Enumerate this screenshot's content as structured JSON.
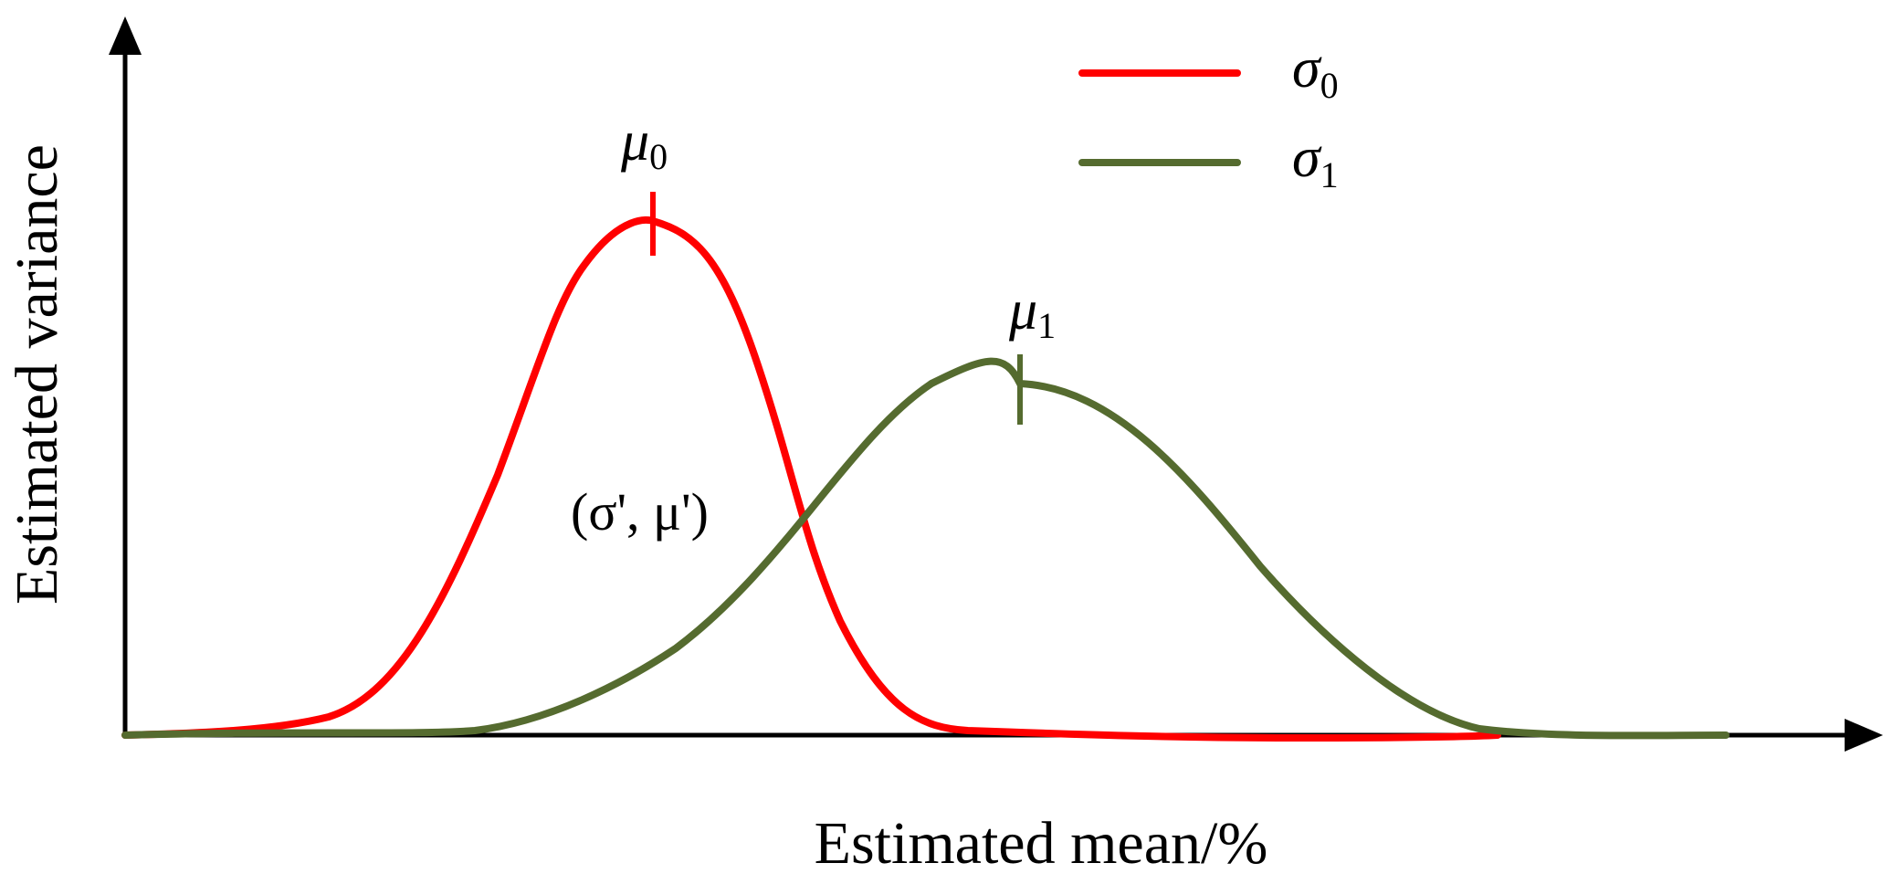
{
  "axes": {
    "x_label": "Estimated mean/%",
    "y_label": "Estimated variance"
  },
  "legend": {
    "placement": "top-right",
    "items": [
      {
        "symbol": "σ",
        "subscript": "0",
        "color": "#ff0000"
      },
      {
        "symbol": "σ",
        "subscript": "1",
        "color": "#556b2f"
      }
    ]
  },
  "curves": [
    {
      "name": "sigma0-curve",
      "color": "#ff0000",
      "peak_label": {
        "symbol": "μ",
        "subscript": "0"
      }
    },
    {
      "name": "sigma1-curve",
      "color": "#556b2f",
      "peak_label": {
        "symbol": "μ",
        "subscript": "1"
      }
    }
  ],
  "intersection_label": "(σ', μ')"
}
